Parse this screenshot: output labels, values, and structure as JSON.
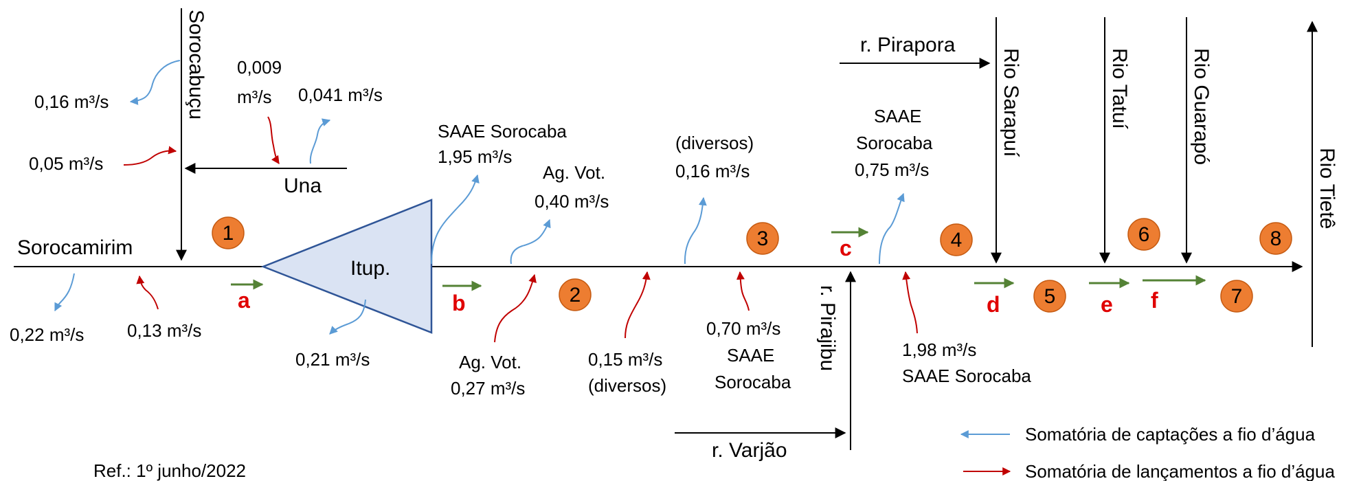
{
  "rivers": {
    "sorocamirim": "Sorocamirim",
    "sorocabucu": "Sorocabuçu",
    "una": "Una",
    "pirapora": "r. Pirapora",
    "pirajibu": "r. Pirajibu",
    "varjao": "r. Varjão",
    "sarapui": "Rio Sarapuí",
    "tatui": "Rio Tatuí",
    "guarapo": "Rio Guarapó",
    "tiete": "Rio Tietê"
  },
  "reservoir": {
    "label": "Itup.",
    "color": "#dae3f3",
    "stroke": "#2f5597"
  },
  "stations": [
    "1",
    "2",
    "3",
    "4",
    "5",
    "6",
    "7",
    "8"
  ],
  "station_color": "#ed7d31",
  "points": [
    "a",
    "b",
    "c",
    "d",
    "e",
    "f"
  ],
  "colors": {
    "withdrawal": "#5b9bd5",
    "discharge": "#c00000",
    "point_arrow": "#548235",
    "point_letter": "#e00000"
  },
  "flows": {
    "q016_soroc": "0,16 m³/s",
    "q005_soroc": "0,05 m³/s",
    "q0009_una_line1": "0,009",
    "q0009_una_line2": "m³/s",
    "q0041_una": "0,041 m³/s",
    "q022": "0,22 m³/s",
    "q013": "0,13 m³/s",
    "q021": "0,21 m³/s",
    "saae195_line1": "SAAE Sorocaba",
    "saae195_line2": "1,95 m³/s",
    "agvot040_line1": "Ag. Vot.",
    "agvot040_line2": "0,40 m³/s",
    "agvot027_line1": "Ag. Vot.",
    "agvot027_line2": "0,27 m³/s",
    "div016_line1": "(diversos)",
    "div016_line2": "0,16 m³/s",
    "div015_line1": "0,15 m³/s",
    "div015_line2": "(diversos)",
    "saae070_line1": "0,70 m³/s",
    "saae070_line2": "SAAE",
    "saae070_line3": "Sorocaba",
    "saae075_line1": "SAAE",
    "saae075_line2": "Sorocaba",
    "saae075_line3": "0,75 m³/s",
    "saae198_line1": "1,98 m³/s",
    "saae198_line2": "SAAE Sorocaba"
  },
  "legend": {
    "withdrawal": "Somatória de captações a fio d’água",
    "discharge": "Somatória de lançamentos a fio d’água"
  },
  "ref": "Ref.: 1º junho/2022"
}
